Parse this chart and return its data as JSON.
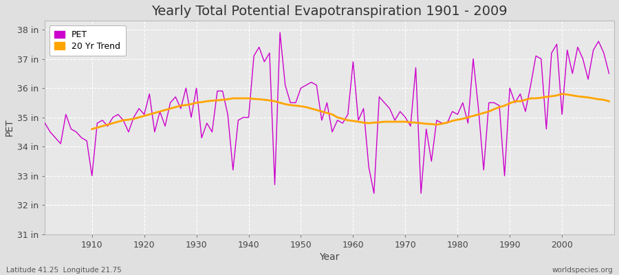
{
  "title": "Yearly Total Potential Evapotranspiration 1901 - 2009",
  "xlabel": "Year",
  "ylabel": "PET",
  "years": [
    1901,
    1902,
    1903,
    1904,
    1905,
    1906,
    1907,
    1908,
    1909,
    1910,
    1911,
    1912,
    1913,
    1914,
    1915,
    1916,
    1917,
    1918,
    1919,
    1920,
    1921,
    1922,
    1923,
    1924,
    1925,
    1926,
    1927,
    1928,
    1929,
    1930,
    1931,
    1932,
    1933,
    1934,
    1935,
    1936,
    1937,
    1938,
    1939,
    1940,
    1941,
    1942,
    1943,
    1944,
    1945,
    1946,
    1947,
    1948,
    1949,
    1950,
    1951,
    1952,
    1953,
    1954,
    1955,
    1956,
    1957,
    1958,
    1959,
    1960,
    1961,
    1962,
    1963,
    1964,
    1965,
    1966,
    1967,
    1968,
    1969,
    1970,
    1971,
    1972,
    1973,
    1974,
    1975,
    1976,
    1977,
    1978,
    1979,
    1980,
    1981,
    1982,
    1983,
    1984,
    1985,
    1986,
    1987,
    1988,
    1989,
    1990,
    1991,
    1992,
    1993,
    1994,
    1995,
    1996,
    1997,
    1998,
    1999,
    2000,
    2001,
    2002,
    2003,
    2004,
    2005,
    2006,
    2007,
    2008,
    2009
  ],
  "pet": [
    34.8,
    34.5,
    34.3,
    34.1,
    35.1,
    34.6,
    34.5,
    34.3,
    34.2,
    33.0,
    34.8,
    34.9,
    34.7,
    35.0,
    35.1,
    34.9,
    34.5,
    35.0,
    35.3,
    35.1,
    35.8,
    34.5,
    35.2,
    34.7,
    35.5,
    35.7,
    35.3,
    36.0,
    35.0,
    36.0,
    34.3,
    34.8,
    34.5,
    35.9,
    35.9,
    35.1,
    33.2,
    34.9,
    35.0,
    35.0,
    37.1,
    37.4,
    36.9,
    37.2,
    32.7,
    37.9,
    36.1,
    35.5,
    35.5,
    36.0,
    36.1,
    36.2,
    36.1,
    34.9,
    35.5,
    34.5,
    34.9,
    34.8,
    35.1,
    36.9,
    34.9,
    35.3,
    33.3,
    32.4,
    35.7,
    35.5,
    35.3,
    34.9,
    35.2,
    35.0,
    34.7,
    36.7,
    32.4,
    34.6,
    33.5,
    34.9,
    34.8,
    34.8,
    35.2,
    35.1,
    35.5,
    34.8,
    37.0,
    35.3,
    33.2,
    35.5,
    35.5,
    35.4,
    33.0,
    36.0,
    35.5,
    35.8,
    35.2,
    36.1,
    37.1,
    37.0,
    34.6,
    37.2,
    37.5,
    35.1,
    37.3,
    36.5,
    37.4,
    37.0,
    36.3,
    37.3,
    37.6,
    37.2,
    36.5
  ],
  "trend_years": [
    1910,
    1911,
    1912,
    1913,
    1914,
    1915,
    1916,
    1917,
    1918,
    1919,
    1920,
    1921,
    1922,
    1923,
    1924,
    1925,
    1926,
    1927,
    1928,
    1929,
    1930,
    1931,
    1932,
    1933,
    1934,
    1935,
    1936,
    1937,
    1938,
    1939,
    1940,
    1941,
    1942,
    1943,
    1944,
    1945,
    1946,
    1947,
    1948,
    1949,
    1950,
    1951,
    1952,
    1953,
    1954,
    1955,
    1956,
    1957,
    1958,
    1959,
    1960,
    1961,
    1962,
    1963,
    1964,
    1965,
    1966,
    1967,
    1968,
    1969,
    1970,
    1971,
    1972,
    1973,
    1974,
    1975,
    1976,
    1977,
    1978,
    1979,
    1980,
    1981,
    1982,
    1983,
    1984,
    1985,
    1986,
    1987,
    1988,
    1989,
    1990,
    1991,
    1992,
    1993,
    1994,
    1995,
    1996,
    1997,
    1998,
    1999,
    2000,
    2001,
    2002,
    2003,
    2004,
    2005,
    2006,
    2007,
    2008,
    2009
  ],
  "trend": [
    34.6,
    34.65,
    34.7,
    34.75,
    34.8,
    34.85,
    34.9,
    34.92,
    34.95,
    35.0,
    35.05,
    35.1,
    35.15,
    35.2,
    35.25,
    35.3,
    35.35,
    35.4,
    35.42,
    35.45,
    35.5,
    35.52,
    35.55,
    35.57,
    35.58,
    35.6,
    35.62,
    35.65,
    35.65,
    35.65,
    35.65,
    35.63,
    35.62,
    35.6,
    35.58,
    35.55,
    35.5,
    35.45,
    35.42,
    35.4,
    35.38,
    35.35,
    35.3,
    35.25,
    35.2,
    35.15,
    35.1,
    35.0,
    34.95,
    34.9,
    34.88,
    34.85,
    34.82,
    34.8,
    34.82,
    34.83,
    34.85,
    34.85,
    34.85,
    34.85,
    34.85,
    34.83,
    34.82,
    34.8,
    34.78,
    34.77,
    34.75,
    34.78,
    34.82,
    34.88,
    34.92,
    34.95,
    35.0,
    35.05,
    35.1,
    35.15,
    35.2,
    35.28,
    35.35,
    35.4,
    35.48,
    35.55,
    35.55,
    35.6,
    35.65,
    35.65,
    35.67,
    35.7,
    35.72,
    35.75,
    35.8,
    35.78,
    35.75,
    35.72,
    35.7,
    35.68,
    35.65,
    35.62,
    35.6,
    35.55
  ],
  "pet_color": "#cc00cc",
  "trend_color": "#ffa500",
  "bg_color": "#e0e0e0",
  "plot_bg_color": "#e8e8e8",
  "ylim": [
    31.0,
    38.3
  ],
  "yticks": [
    31,
    32,
    33,
    34,
    35,
    36,
    37,
    38
  ],
  "ytick_labels": [
    "31 in",
    "32 in",
    "33 in",
    "34 in",
    "35 in",
    "36 in",
    "37 in",
    "38 in"
  ],
  "xticks": [
    1910,
    1920,
    1930,
    1940,
    1950,
    1960,
    1970,
    1980,
    1990,
    2000
  ],
  "xlim": [
    1901,
    2010
  ],
  "title_fontsize": 14,
  "axis_label_fontsize": 10,
  "tick_fontsize": 9,
  "legend_fontsize": 9,
  "bottom_left_text": "Latitude 41.25  Longitude 21.75",
  "bottom_right_text": "worldspecies.org"
}
